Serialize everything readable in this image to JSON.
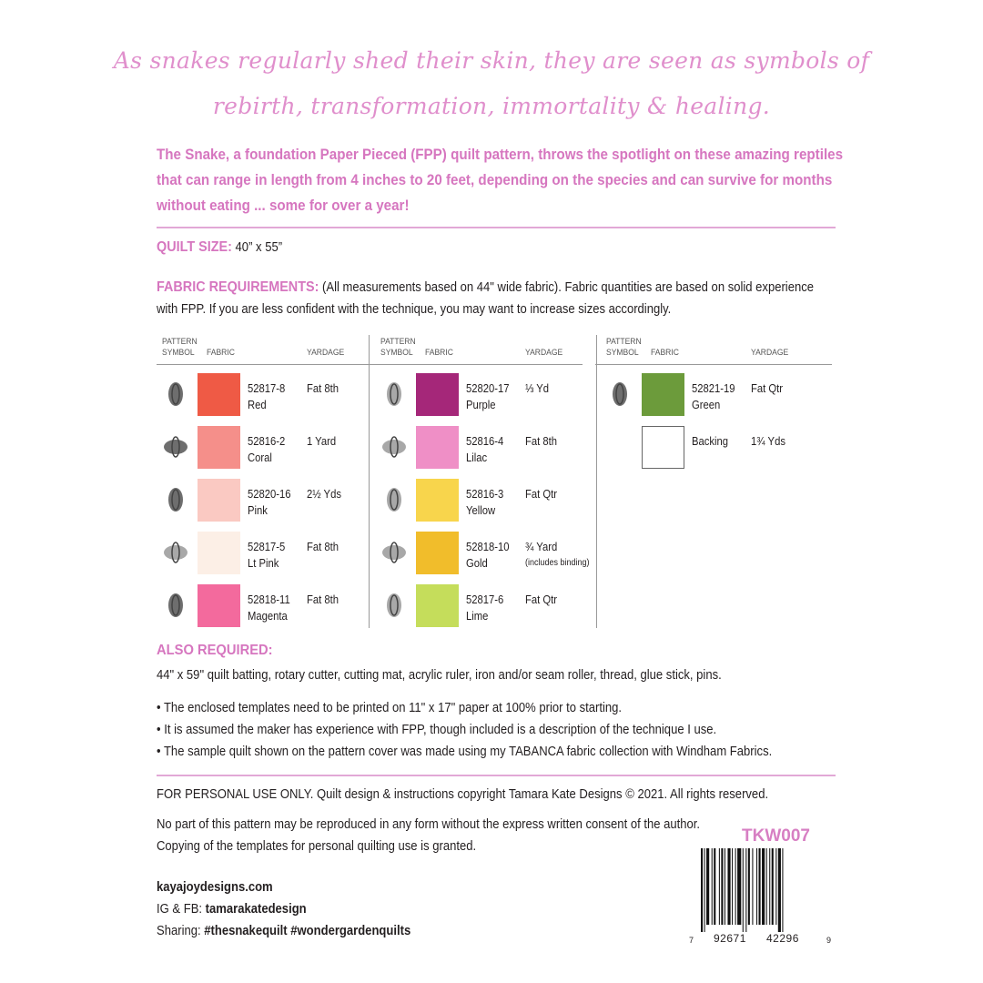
{
  "script_quote": [
    "As snakes regularly shed their skin, they are seen as symbols of",
    "rebirth, transformation, immortality & healing."
  ],
  "intro": "The Snake, a foundation Paper Pieced (FPP) quilt pattern, throws the spotlight on these amazing reptiles that can range in length from 4 inches to 20 feet, depending on the species and can survive for months without eating ... some for over a year!",
  "quilt_size": {
    "label": "QUILT SIZE:",
    "value": "40” x 55”"
  },
  "fabric_requirements": {
    "label": "FABRIC REQUIREMENTS:",
    "text": "(All measurements based on 44\" wide fabric). Fabric quantities are based on solid experience with FPP. If you are less confident with the technique, you may want to increase sizes accordingly."
  },
  "table": {
    "headers": {
      "symbol": "PATTERN SYMBOL",
      "fabric": "FABRIC",
      "yardage": "YARDAGE"
    },
    "columns": [
      [
        {
          "icon": "bug-icon",
          "code": "52817-8",
          "name": "Red",
          "yardage": "Fat 8th",
          "color": "#ef5a45"
        },
        {
          "icon": "flower-icon",
          "code": "52816-2",
          "name": "Coral",
          "yardage": "1 Yard",
          "color": "#f58f8a"
        },
        {
          "icon": "firefly-icon",
          "code": "52820-16",
          "name": "Pink",
          "yardage": "2½ Yds",
          "color": "#fac9c2"
        },
        {
          "icon": "dragonfly-icon",
          "code": "52817-5",
          "name": "Lt Pink",
          "yardage": "Fat 8th",
          "color": "#fcefe6"
        },
        {
          "icon": "butterfly-icon",
          "code": "52818-11",
          "name": "Magenta",
          "yardage": "Fat 8th",
          "color": "#f36a9d"
        }
      ],
      [
        {
          "icon": "ladybug-icon",
          "code": "52820-17",
          "name": "Purple",
          "yardage": "⅓ Yd",
          "color": "#a52779"
        },
        {
          "icon": "leaf-icon",
          "code": "52816-4",
          "name": "Lilac",
          "yardage": "Fat 8th",
          "color": "#ef8fc6"
        },
        {
          "icon": "bee-icon",
          "code": "52816-3",
          "name": "Yellow",
          "yardage": "Fat Qtr",
          "color": "#f8d54c"
        },
        {
          "icon": "sprig-icon",
          "code": "52818-10",
          "name": "Gold",
          "yardage": "¾ Yard",
          "note": "(includes binding)",
          "color": "#f1bd2b"
        },
        {
          "icon": "oak-leaf-icon",
          "code": "52817-6",
          "name": "Lime",
          "yardage": "Fat Qtr",
          "color": "#c5dd5b"
        }
      ],
      [
        {
          "icon": "moth-icon",
          "code": "52821-19",
          "name": "Green",
          "yardage": "Fat Qtr",
          "color": "#6c9b3b"
        },
        {
          "icon": "",
          "code": "Backing",
          "name": "",
          "yardage": "1¾ Yds",
          "color": "#ffffff"
        }
      ]
    ]
  },
  "also_required": {
    "label": "ALSO REQUIRED:",
    "text": "44\" x 59\" quilt batting, rotary cutter, cutting mat, acrylic ruler, iron and/or seam roller, thread, glue stick, pins."
  },
  "bullets": [
    "• The enclosed templates need to be printed on 11\" x 17\" paper at 100% prior to starting.",
    "• It is assumed the maker has experience with FPP, though included is a description of the technique I use.",
    "• The sample quilt shown on the pattern cover was made using my TABANCA fabric collection with Windham Fabrics."
  ],
  "copyright": "FOR PERSONAL USE ONLY. Quilt design & instructions copyright Tamara Kate Designs © 2021. All rights reserved.",
  "notice": [
    "No part of this pattern may be reproduced in any form without the express written consent of the author.",
    "Copying of the templates for personal quilting use is granted."
  ],
  "website": "kayajoydesigns.com",
  "social": {
    "label": "IG & FB: ",
    "handle": "tamarakatedesign"
  },
  "sharing": {
    "label": "Sharing: ",
    "tags": "#thesnakequilt #wondergardenquilts"
  },
  "sku": "TKW007",
  "barcode": {
    "left": "7",
    "group1": "92671",
    "group2": "42296",
    "right": "9"
  },
  "colors": {
    "pink_heading": "#d676bf",
    "script_pink": "#e08fcc",
    "rule": "#e2a8d6"
  }
}
